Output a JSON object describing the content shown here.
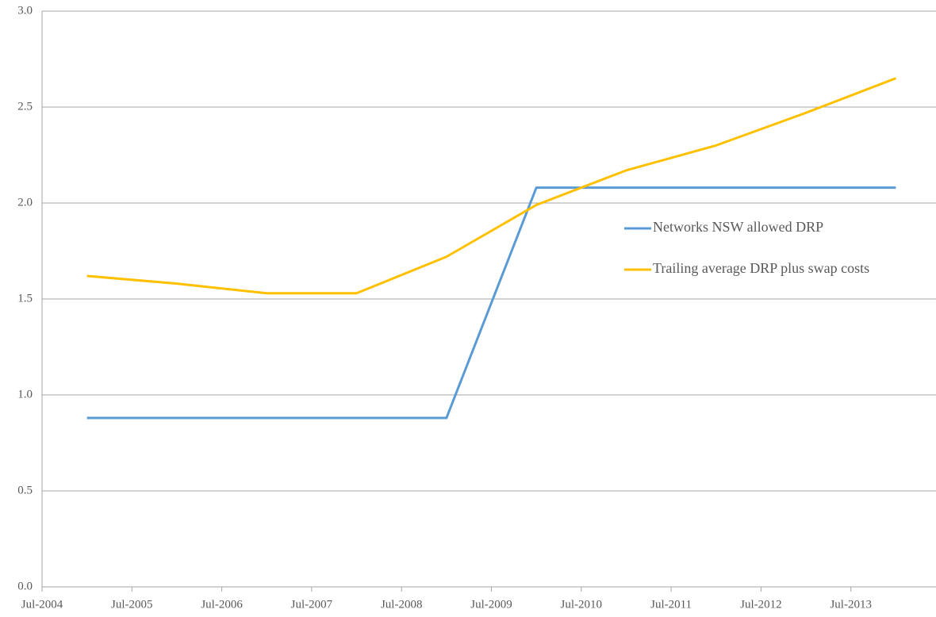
{
  "chart_data": {
    "type": "line",
    "categories": [
      "Jul-2004",
      "Jul-2005",
      "Jul-2006",
      "Jul-2007",
      "Jul-2008",
      "Jul-2009",
      "Jul-2010",
      "Jul-2011",
      "Jul-2012",
      "Jul-2013"
    ],
    "series": [
      {
        "name": "Networks NSW allowed DRP",
        "color": "#5b9bd5",
        "values": [
          0.88,
          0.88,
          0.88,
          0.88,
          0.88,
          2.08,
          2.08,
          2.08,
          2.08,
          2.08
        ]
      },
      {
        "name": "Trailing average DRP plus swap costs",
        "color": "#ffc000",
        "values": [
          1.62,
          1.58,
          1.53,
          1.53,
          1.72,
          1.99,
          2.17,
          2.3,
          2.47,
          2.65
        ]
      }
    ],
    "ylim": [
      0,
      3
    ],
    "yticks": [
      {
        "value": 0,
        "label": "0.0"
      },
      0.5,
      {
        "value": 1,
        "label": "1.0"
      },
      1.5,
      {
        "value": 2,
        "label": "2.0"
      },
      2.5,
      {
        "value": 3,
        "label": "3.0"
      }
    ],
    "grid": true,
    "legend": "right"
  }
}
